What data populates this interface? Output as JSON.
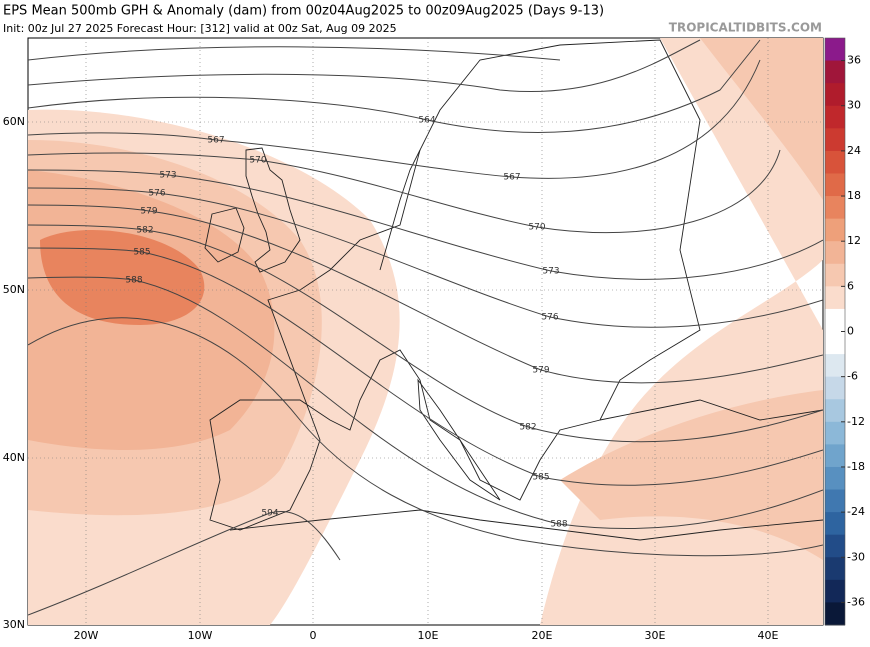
{
  "header": {
    "title": "EPS Mean 500mb GPH & Anomaly (dam) from 00z04Aug2025 to 00z09Aug2025 (Days 9-13)",
    "subtitle": "Init: 00z Jul 27 2025   Forecast Hour: [312]   valid at 00z Sat, Aug 09 2025",
    "brand": "TROPICALTIDBITS.COM"
  },
  "map": {
    "lat_labels": [
      "60N",
      "50N",
      "40N",
      "30N"
    ],
    "lon_labels": [
      "20W",
      "10W",
      "0",
      "10E",
      "20E",
      "30E",
      "40E"
    ],
    "contour_labels": [
      "564",
      "567",
      "567",
      "570",
      "570",
      "573",
      "573",
      "576",
      "576",
      "579",
      "579",
      "582",
      "582",
      "585",
      "585",
      "588",
      "588",
      "594"
    ]
  },
  "colorbar": {
    "ticks": [
      36,
      30,
      24,
      18,
      12,
      6,
      0,
      -6,
      -12,
      -18,
      -24,
      -30,
      -36
    ],
    "colors": [
      "#8b1a8b",
      "#a0163a",
      "#b01c2c",
      "#c0282c",
      "#cc3a30",
      "#d8533a",
      "#e06a48",
      "#e8845e",
      "#eea07a",
      "#f2b496",
      "#f6c8b0",
      "#fadccc",
      "#ffffff",
      "#ffffff",
      "#dde8f0",
      "#c6d8e8",
      "#a8c8e0",
      "#8cb8d8",
      "#70a4cc",
      "#5890c0",
      "#4078b0",
      "#2e64a0",
      "#224c88",
      "#1a3a70",
      "#122858",
      "#0a1838"
    ]
  }
}
